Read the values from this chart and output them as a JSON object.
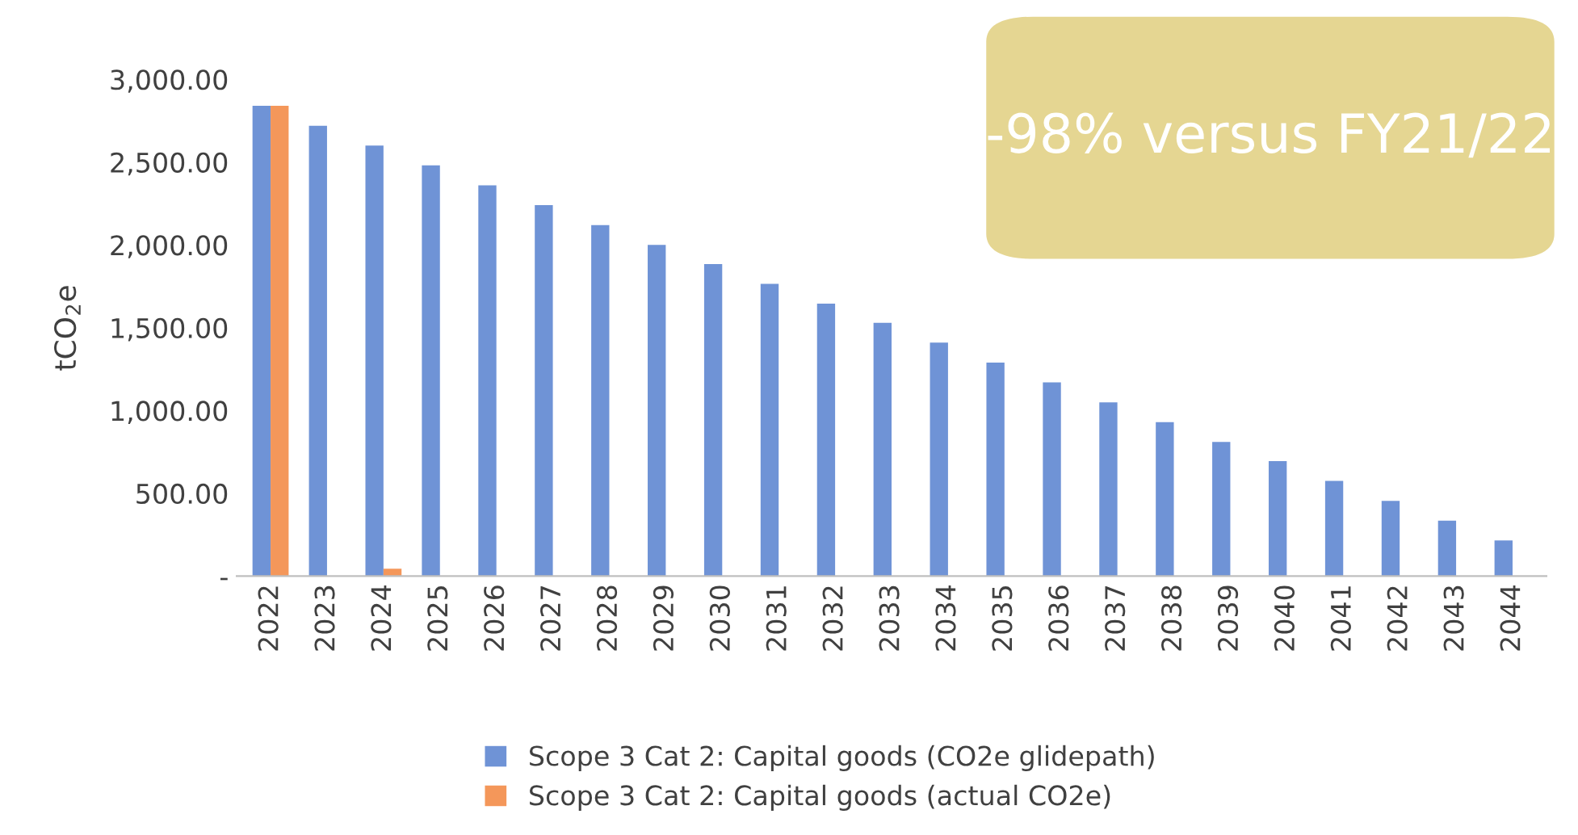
{
  "chart_data": {
    "type": "bar",
    "ylabel": "tCO$_{2}$e",
    "categories": [
      "2022",
      "2023",
      "2024",
      "2025",
      "2026",
      "2027",
      "2028",
      "2029",
      "2030",
      "2031",
      "2032",
      "2033",
      "2034",
      "2035",
      "2036",
      "2037",
      "2038",
      "2039",
      "2040",
      "2041",
      "2042",
      "2043",
      "2044"
    ],
    "series": [
      {
        "name": "Scope 3 Cat 2: Capital goods (CO2e glidepath)",
        "color": "#6f93d6",
        "values": [
          2840,
          2720,
          2600,
          2480,
          2360,
          2240,
          2120,
          2000,
          1885,
          1765,
          1645,
          1530,
          1410,
          1290,
          1170,
          1050,
          930,
          810,
          695,
          575,
          455,
          335,
          215
        ]
      },
      {
        "name": "Scope 3 Cat 2: Capital goods (actual CO2e)",
        "color": "#f4975a",
        "values": [
          2840,
          null,
          45,
          null,
          null,
          null,
          null,
          null,
          null,
          null,
          null,
          null,
          null,
          null,
          null,
          null,
          null,
          null,
          null,
          null,
          null,
          null,
          null
        ]
      }
    ],
    "ylim": [
      0,
      3000
    ],
    "yticks": [
      {
        "value": 0,
        "label": "-"
      },
      {
        "value": 500,
        "label": "500.00"
      },
      {
        "value": 1000,
        "label": "1,000.00"
      },
      {
        "value": 1500,
        "label": "1,500.00"
      },
      {
        "value": 2000,
        "label": "2,000.00"
      },
      {
        "value": 2500,
        "label": "2,500.00"
      },
      {
        "value": 3000,
        "label": "3,000.00"
      }
    ],
    "annotations": [
      "-98% versus FY21/22"
    ],
    "grid": false,
    "legend": "bottom"
  }
}
